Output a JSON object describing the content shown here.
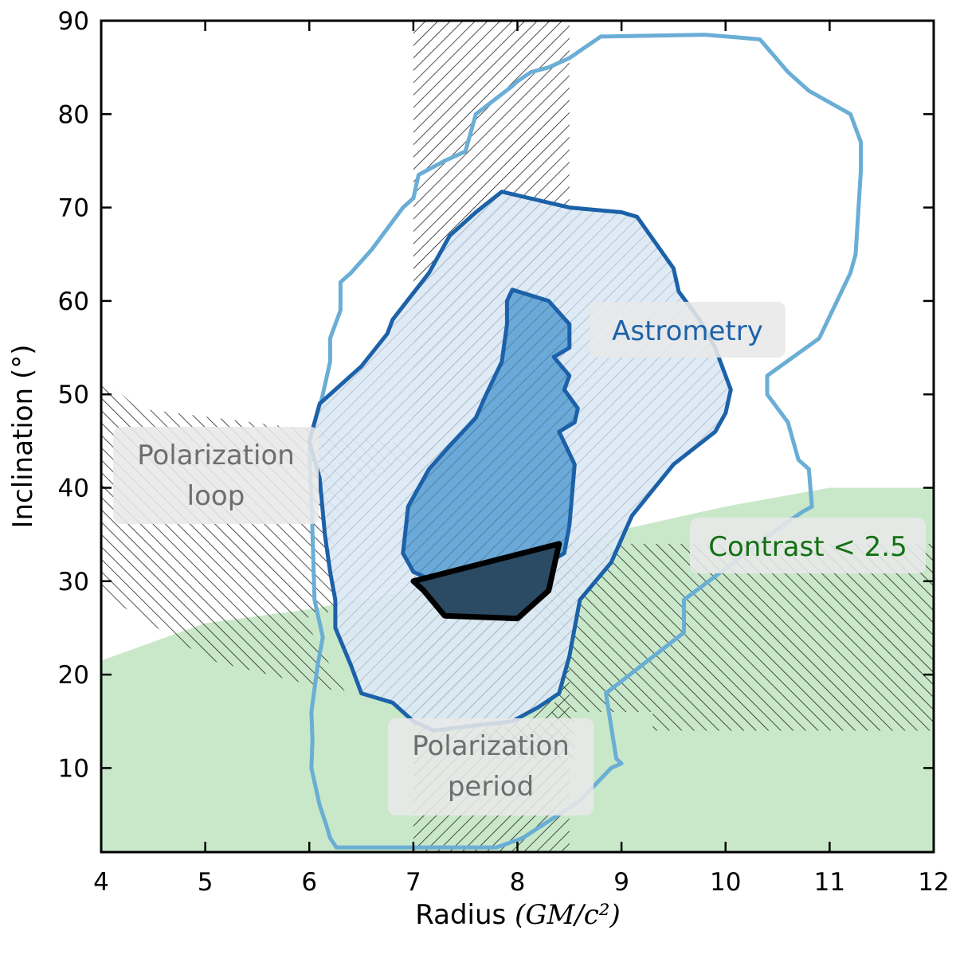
{
  "chart_data": {
    "type": "area",
    "xlabel": "Radius",
    "xlabel_math": "(GM/c²)",
    "ylabel": "Inclination",
    "ylabel_unit": "(°)",
    "xlim": [
      4,
      12
    ],
    "ylim": [
      1,
      90
    ],
    "xticks": [
      4,
      5,
      6,
      7,
      8,
      9,
      10,
      11,
      12
    ],
    "yticks": [
      10,
      20,
      30,
      40,
      50,
      60,
      70,
      80,
      90
    ],
    "x_tick_labels": [
      "4",
      "5",
      "6",
      "7",
      "8",
      "9",
      "10",
      "11",
      "12"
    ],
    "y_tick_labels": [
      "10",
      "20",
      "30",
      "40",
      "50",
      "60",
      "70",
      "80",
      "90"
    ],
    "colors": {
      "contrast_fill": "#c9e8c9",
      "astrometry_outer": "#6aaed6",
      "astrometry_mid_fill": "#dbe8f5",
      "astrometry_mid_line": "#1c62aa",
      "astrometry_inner_fill": "#5a9fd4",
      "combined_fill": "#2b4a63",
      "hatch": "#222222"
    },
    "regions": {
      "contrast": [
        [
          4,
          21.5
        ],
        [
          5,
          25.5
        ],
        [
          6,
          27
        ],
        [
          7,
          29
        ],
        [
          8,
          33
        ],
        [
          9,
          35.5
        ],
        [
          10,
          38
        ],
        [
          11,
          40
        ],
        [
          12,
          40
        ],
        [
          12,
          1
        ],
        [
          4,
          1
        ]
      ],
      "polarization_period_band": [
        7,
        8.5
      ],
      "polarization_loop": [
        [
          4,
          52
        ],
        [
          4.35,
          48.5
        ],
        [
          6.55,
          45.5
        ],
        [
          7.15,
          44
        ],
        [
          6.45,
          40
        ],
        [
          6.2,
          33
        ],
        [
          6.3,
          27
        ],
        [
          5.95,
          26
        ],
        [
          6.35,
          18
        ],
        [
          5.05,
          21.5
        ],
        [
          4.1,
          28
        ],
        [
          4,
          29
        ]
      ],
      "contrast_hatch": [
        [
          7.05,
          34
        ],
        [
          12,
          34
        ],
        [
          12,
          14
        ],
        [
          9.3,
          14
        ],
        [
          9.3,
          16
        ],
        [
          8.55,
          16
        ],
        [
          8.55,
          11
        ],
        [
          7.8,
          11
        ],
        [
          7.6,
          14
        ],
        [
          8.3,
          15
        ],
        [
          8.5,
          22
        ],
        [
          8.0,
          29
        ],
        [
          7.4,
          33
        ]
      ],
      "astrometry_outer": [
        [
          6.26,
          1.5
        ],
        [
          7.8,
          1.5
        ],
        [
          8.05,
          2.5
        ],
        [
          8.6,
          6.5
        ],
        [
          8.9,
          10
        ],
        [
          9.0,
          10.5
        ],
        [
          8.95,
          11
        ],
        [
          8.85,
          18
        ],
        [
          9.6,
          24.5
        ],
        [
          9.6,
          28
        ],
        [
          10.55,
          36
        ],
        [
          10.75,
          37.5
        ],
        [
          10.83,
          38
        ],
        [
          10.8,
          42
        ],
        [
          10.7,
          43
        ],
        [
          10.6,
          47
        ],
        [
          10.4,
          50
        ],
        [
          10.4,
          52
        ],
        [
          10.9,
          56
        ],
        [
          11.2,
          63
        ],
        [
          11.25,
          65
        ],
        [
          11.3,
          74
        ],
        [
          11.3,
          77
        ],
        [
          11.2,
          80
        ],
        [
          10.8,
          82.5
        ],
        [
          10.6,
          84.5
        ],
        [
          10.33,
          88
        ],
        [
          10.13,
          88.2
        ],
        [
          9.8,
          88.5
        ],
        [
          8.8,
          88.3
        ],
        [
          8.5,
          86
        ],
        [
          8.3,
          85
        ],
        [
          8.13,
          84.5
        ],
        [
          8.0,
          83.5
        ],
        [
          7.95,
          83
        ],
        [
          7.6,
          80
        ],
        [
          7.5,
          76
        ],
        [
          7.3,
          75
        ],
        [
          7.05,
          73.5
        ],
        [
          7.0,
          71
        ],
        [
          6.9,
          70
        ],
        [
          6.6,
          65.5
        ],
        [
          6.4,
          63
        ],
        [
          6.3,
          62
        ],
        [
          6.3,
          59
        ],
        [
          6.2,
          56
        ],
        [
          6.2,
          53.5
        ],
        [
          6.13,
          50
        ],
        [
          6.0,
          44
        ],
        [
          6.02,
          39
        ],
        [
          6.05,
          28
        ],
        [
          6.13,
          24
        ],
        [
          6.08,
          21
        ],
        [
          6.02,
          16
        ],
        [
          6.03,
          13
        ],
        [
          6.02,
          10
        ],
        [
          6.1,
          6
        ],
        [
          6.16,
          4
        ],
        [
          6.2,
          2.5
        ]
      ],
      "astrometry_mid": [
        [
          7.85,
          71.7
        ],
        [
          8.5,
          70
        ],
        [
          9.0,
          69.5
        ],
        [
          9.15,
          69
        ],
        [
          9.5,
          63.5
        ],
        [
          9.55,
          61
        ],
        [
          9.75,
          58
        ],
        [
          9.9,
          55
        ],
        [
          10.05,
          50.5
        ],
        [
          10.0,
          48
        ],
        [
          9.9,
          46
        ],
        [
          9.5,
          42.5
        ],
        [
          9.1,
          37
        ],
        [
          8.9,
          32
        ],
        [
          8.6,
          28
        ],
        [
          8.5,
          22
        ],
        [
          8.4,
          18
        ],
        [
          8.2,
          16.5
        ],
        [
          7.95,
          15
        ],
        [
          7.55,
          14.5
        ],
        [
          7.2,
          14
        ],
        [
          7.0,
          15
        ],
        [
          6.8,
          17
        ],
        [
          6.5,
          18
        ],
        [
          6.4,
          21
        ],
        [
          6.25,
          25
        ],
        [
          6.25,
          28
        ],
        [
          6.2,
          31
        ],
        [
          6.15,
          35
        ],
        [
          6.1,
          41
        ],
        [
          6.0,
          45
        ],
        [
          6.1,
          49
        ],
        [
          6.5,
          53
        ],
        [
          6.75,
          56.5
        ],
        [
          6.8,
          58
        ],
        [
          7.15,
          63
        ],
        [
          7.35,
          67
        ],
        [
          7.6,
          69.5
        ]
      ],
      "astrometry_inner": [
        [
          7.95,
          61.2
        ],
        [
          8.3,
          60
        ],
        [
          8.5,
          57.5
        ],
        [
          8.5,
          55
        ],
        [
          8.35,
          54
        ],
        [
          8.5,
          52
        ],
        [
          8.45,
          50.5
        ],
        [
          8.58,
          48.5
        ],
        [
          8.55,
          47
        ],
        [
          8.4,
          46
        ],
        [
          8.55,
          42.5
        ],
        [
          8.5,
          36
        ],
        [
          8.45,
          33
        ],
        [
          8.3,
          32
        ],
        [
          7.7,
          31
        ],
        [
          7.2,
          30
        ],
        [
          7.0,
          31
        ],
        [
          6.9,
          33
        ],
        [
          6.95,
          38
        ],
        [
          7.15,
          42
        ],
        [
          7.35,
          44.5
        ],
        [
          7.6,
          47.5
        ],
        [
          7.7,
          50
        ],
        [
          7.85,
          53.5
        ],
        [
          7.9,
          57.5
        ],
        [
          7.9,
          60
        ]
      ],
      "combined": [
        [
          7.0,
          30
        ],
        [
          8.4,
          34
        ],
        [
          8.3,
          29
        ],
        [
          8.0,
          26
        ],
        [
          7.3,
          26.3
        ],
        [
          7.1,
          29
        ]
      ]
    },
    "annotations": {
      "astrometry": "Astrometry",
      "polarization_loop_line1": "Polarization",
      "polarization_loop_line2": "loop",
      "contrast": "Contrast < 2.5",
      "polarization_period_line1": "Polarization",
      "polarization_period_line2": "period"
    }
  }
}
